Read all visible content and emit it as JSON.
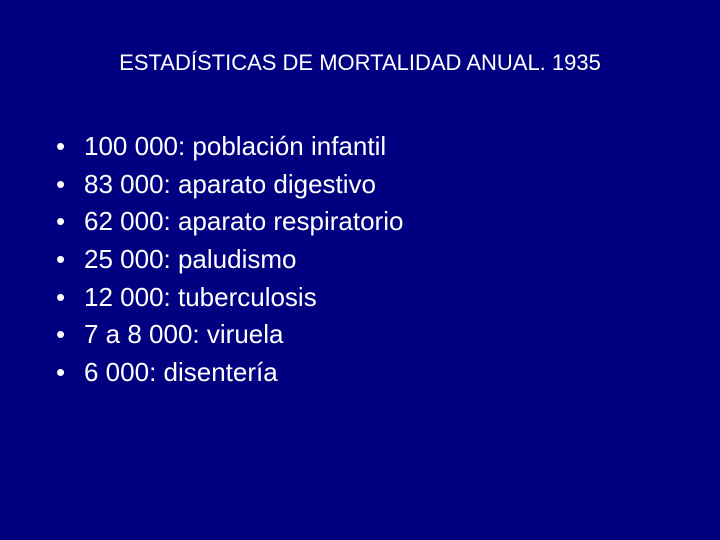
{
  "slide": {
    "background_color": "#000080",
    "text_color": "#ffffff",
    "title": "ESTADÍSTICAS DE MORTALIDAD ANUAL. 1935",
    "title_fontsize": 22,
    "body_fontsize": 26,
    "bullets": [
      {
        "text": "100 000: población infantil"
      },
      {
        "text": "83 000: aparato digestivo"
      },
      {
        "text": "62 000: aparato respiratorio"
      },
      {
        "text": "25 000: paludismo"
      },
      {
        "text": "12 000: tuberculosis"
      },
      {
        "text": "7 a 8 000: viruela"
      },
      {
        "text": "6 000: disentería"
      }
    ],
    "bullet_char": "•"
  }
}
